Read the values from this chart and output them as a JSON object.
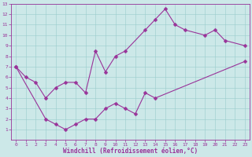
{
  "line1_x": [
    0,
    1,
    2,
    3,
    4,
    5,
    6,
    7,
    8,
    9,
    10,
    11,
    13,
    14,
    15,
    16,
    17,
    19,
    20,
    21,
    23
  ],
  "line1_y": [
    7,
    6,
    5.5,
    4,
    5,
    5.5,
    5.5,
    4.5,
    8.5,
    6.5,
    8,
    8.5,
    10.5,
    11.5,
    12.5,
    11,
    10.5,
    10,
    10.5,
    9.5,
    9
  ],
  "line2_x": [
    0,
    3,
    4,
    5,
    6,
    7,
    8,
    9,
    10,
    11,
    12,
    13,
    14,
    23
  ],
  "line2_y": [
    7,
    2,
    1.5,
    1,
    1.5,
    2,
    2,
    3,
    3.5,
    3,
    2.5,
    4.5,
    4,
    7.5
  ],
  "line_color": "#993399",
  "bg_color": "#cce8e8",
  "grid_color": "#99cccc",
  "xlabel": "Windchill (Refroidissement éolien,°C)",
  "xlim": [
    -0.5,
    23.5
  ],
  "ylim": [
    0,
    13
  ],
  "xticks": [
    0,
    1,
    2,
    3,
    4,
    5,
    6,
    7,
    8,
    9,
    10,
    11,
    12,
    13,
    14,
    15,
    16,
    17,
    18,
    19,
    20,
    21,
    22,
    23
  ],
  "yticks": [
    1,
    2,
    3,
    4,
    5,
    6,
    7,
    8,
    9,
    10,
    11,
    12,
    13
  ],
  "marker": "D",
  "markersize": 2.5,
  "linewidth": 0.8,
  "tick_fontsize": 4.5,
  "xlabel_fontsize": 5.5
}
